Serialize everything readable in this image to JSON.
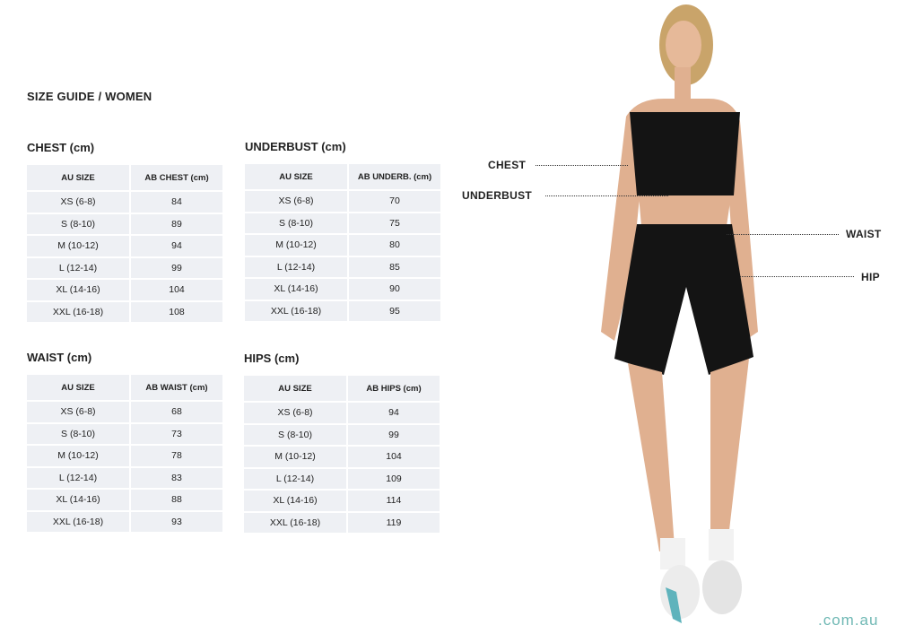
{
  "title": "SIZE GUIDE / WOMEN",
  "tables": {
    "chest": {
      "title": "CHEST (cm)",
      "headers": [
        "AU SIZE",
        "AB CHEST (cm)"
      ],
      "rows": [
        [
          "XS (6-8)",
          "84"
        ],
        [
          "S (8-10)",
          "89"
        ],
        [
          "M (10-12)",
          "94"
        ],
        [
          "L (12-14)",
          "99"
        ],
        [
          "XL (14-16)",
          "104"
        ],
        [
          "XXL (16-18)",
          "108"
        ]
      ]
    },
    "underbust": {
      "title": "UNDERBUST (cm)",
      "headers": [
        "AU SIZE",
        "AB UNDERB. (cm)"
      ],
      "rows": [
        [
          "XS (6-8)",
          "70"
        ],
        [
          "S (8-10)",
          "75"
        ],
        [
          "M (10-12)",
          "80"
        ],
        [
          "L (12-14)",
          "85"
        ],
        [
          "XL (14-16)",
          "90"
        ],
        [
          "XXL (16-18)",
          "95"
        ]
      ]
    },
    "waist": {
      "title": "WAIST (cm)",
      "headers": [
        "AU SIZE",
        "AB WAIST (cm)"
      ],
      "rows": [
        [
          "XS (6-8)",
          "68"
        ],
        [
          "S (8-10)",
          "73"
        ],
        [
          "M (10-12)",
          "78"
        ],
        [
          "L (12-14)",
          "83"
        ],
        [
          "XL (14-16)",
          "88"
        ],
        [
          "XXL (16-18)",
          "93"
        ]
      ]
    },
    "hips": {
      "title": "HIPS (cm)",
      "headers": [
        "AU SIZE",
        "AB HIPS (cm)"
      ],
      "rows": [
        [
          "XS (6-8)",
          "94"
        ],
        [
          "S (8-10)",
          "99"
        ],
        [
          "M (10-12)",
          "104"
        ],
        [
          "L (12-14)",
          "109"
        ],
        [
          "XL (14-16)",
          "114"
        ],
        [
          "XXL (16-18)",
          "119"
        ]
      ]
    }
  },
  "measure_labels": {
    "chest": "CHEST",
    "underbust": "UNDERBUST",
    "waist": "WAIST",
    "hip": "HIP"
  },
  "domain_suffix": ".com.au",
  "colors": {
    "table_bg": "#eef0f4",
    "brand": "#6fb8b4"
  }
}
